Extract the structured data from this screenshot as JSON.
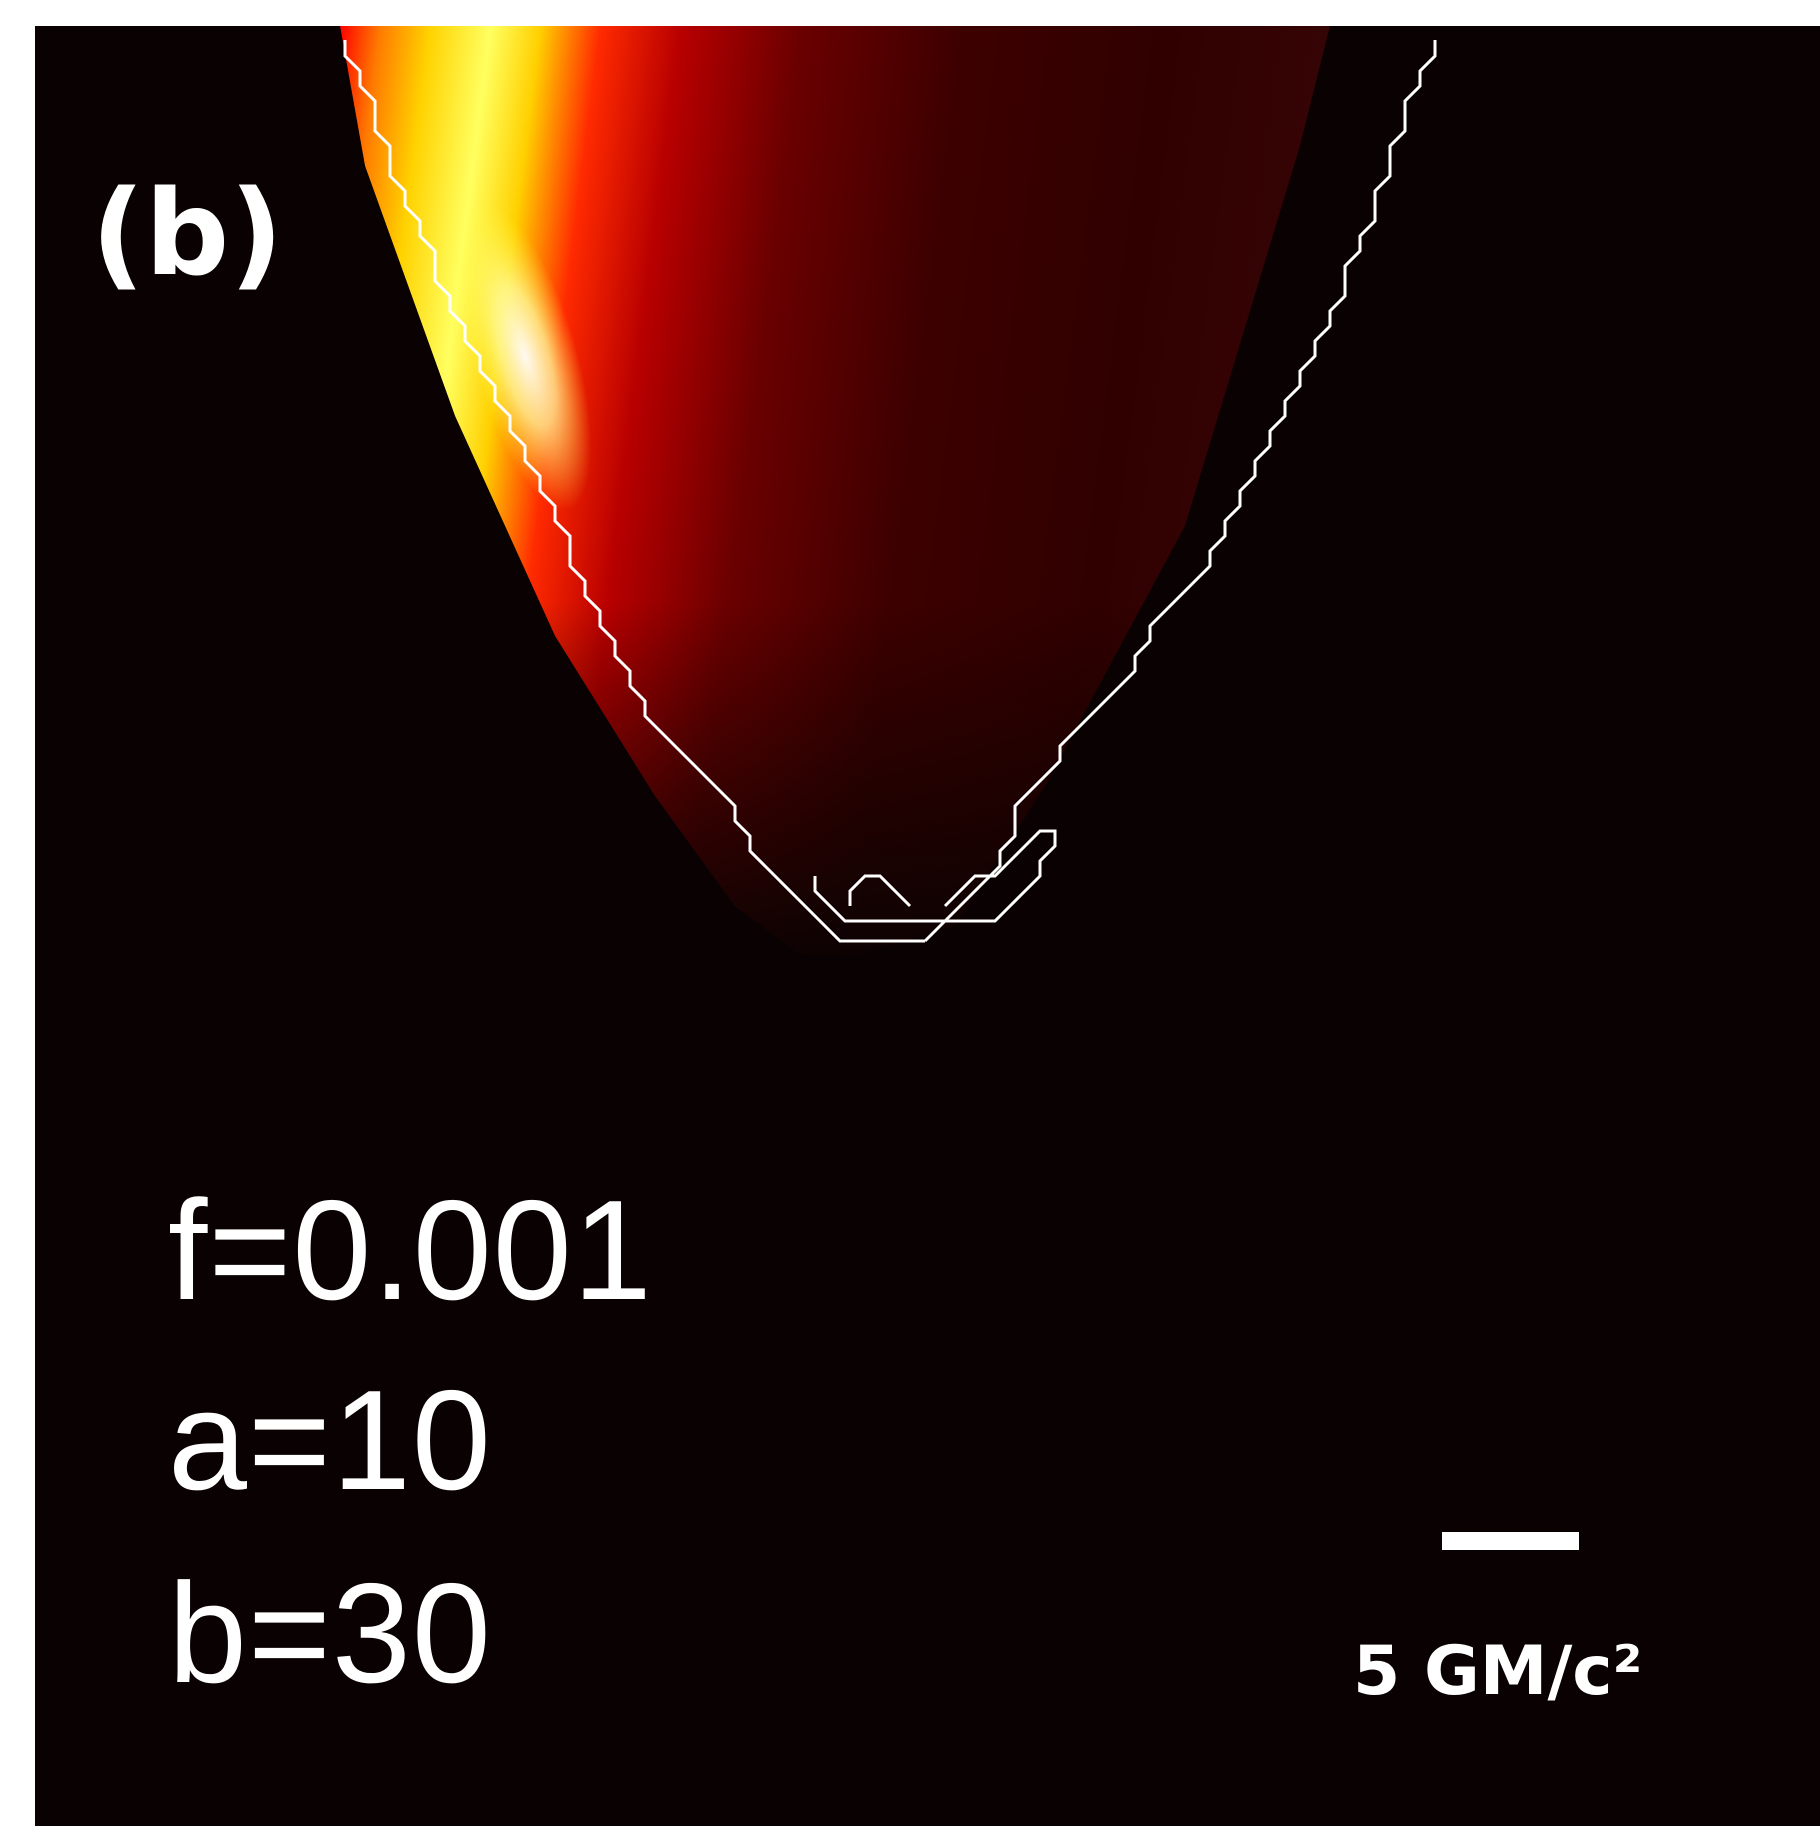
{
  "figure": {
    "panel_label": "(b)",
    "params": {
      "f": "f=0.001",
      "a": "a=10",
      "b": "b=30"
    },
    "scale": {
      "label": "5 GM/c²"
    },
    "colormap": [
      "#0a0202",
      "#3a0000",
      "#7a0000",
      "#d40000",
      "#ff5a00",
      "#ffb300",
      "#ffff20",
      "#ffffe6"
    ],
    "contour_color": "#ffffff",
    "background": "#0a0202"
  }
}
